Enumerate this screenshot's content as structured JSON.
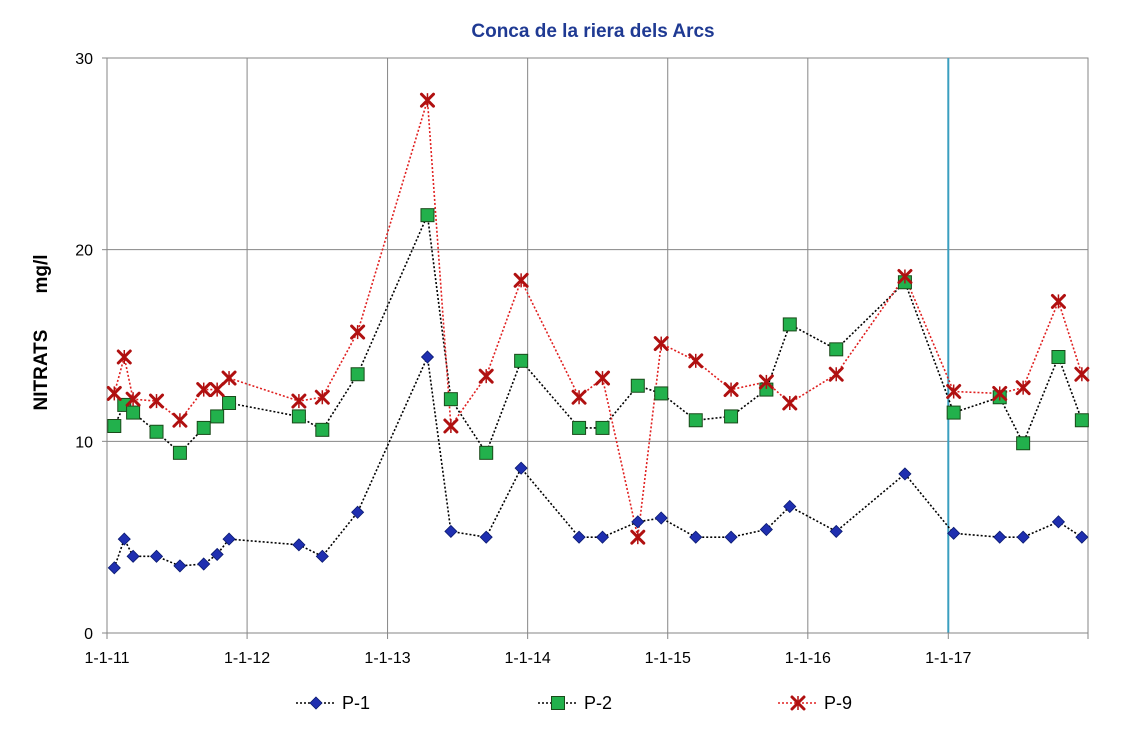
{
  "chart_data": {
    "type": "line",
    "title": "Conca de la riera dels Arcs",
    "ylabel_parts": [
      "NITRATS",
      "mg/l"
    ],
    "xlabel": "",
    "xlim": [
      "2011-01-01",
      "2017-12-31"
    ],
    "ylim": [
      0,
      30
    ],
    "y_ticks": [
      0,
      10,
      20,
      30
    ],
    "x_ticks": [
      {
        "date": "2011-01-01",
        "label": "1-1-11"
      },
      {
        "date": "2012-01-01",
        "label": "1-1-12"
      },
      {
        "date": "2013-01-01",
        "label": "1-1-13"
      },
      {
        "date": "2014-01-01",
        "label": "1-1-14"
      },
      {
        "date": "2015-01-01",
        "label": "1-1-15"
      },
      {
        "date": "2016-01-01",
        "label": "1-1-16"
      },
      {
        "date": "2017-01-01",
        "label": "1-1-17"
      }
    ],
    "grid": true,
    "legend_position": "bottom",
    "reference_line": {
      "date": "2017-01-01",
      "color": "#3a9fc0"
    },
    "series": [
      {
        "name": "P-1",
        "color": "#1f2fb0",
        "line_color": "#000000",
        "marker": "diamond",
        "points": [
          [
            "2011-01-20",
            3.4
          ],
          [
            "2011-02-15",
            4.9
          ],
          [
            "2011-03-10",
            4.0
          ],
          [
            "2011-05-10",
            4.0
          ],
          [
            "2011-07-10",
            3.5
          ],
          [
            "2011-09-10",
            3.6
          ],
          [
            "2011-10-15",
            4.1
          ],
          [
            "2011-11-15",
            4.9
          ],
          [
            "2012-05-15",
            4.6
          ],
          [
            "2012-07-15",
            4.0
          ],
          [
            "2012-10-15",
            6.3
          ],
          [
            "2013-04-15",
            14.4
          ],
          [
            "2013-06-15",
            5.3
          ],
          [
            "2013-09-15",
            5.0
          ],
          [
            "2013-12-15",
            8.6
          ],
          [
            "2014-05-15",
            5.0
          ],
          [
            "2014-07-15",
            5.0
          ],
          [
            "2014-10-15",
            5.8
          ],
          [
            "2014-12-15",
            6.0
          ],
          [
            "2015-03-15",
            5.0
          ],
          [
            "2015-06-15",
            5.0
          ],
          [
            "2015-09-15",
            5.4
          ],
          [
            "2015-11-15",
            6.6
          ],
          [
            "2016-03-15",
            5.3
          ],
          [
            "2016-09-10",
            8.3
          ],
          [
            "2017-01-15",
            5.2
          ],
          [
            "2017-05-15",
            5.0
          ],
          [
            "2017-07-15",
            5.0
          ],
          [
            "2017-10-15",
            5.8
          ],
          [
            "2017-12-15",
            5.0
          ]
        ]
      },
      {
        "name": "P-2",
        "color": "#22b14c",
        "line_color": "#000000",
        "marker": "square",
        "points": [
          [
            "2011-01-20",
            10.8
          ],
          [
            "2011-02-15",
            11.9
          ],
          [
            "2011-03-10",
            11.5
          ],
          [
            "2011-05-10",
            10.5
          ],
          [
            "2011-07-10",
            9.4
          ],
          [
            "2011-09-10",
            10.7
          ],
          [
            "2011-10-15",
            11.3
          ],
          [
            "2011-11-15",
            12.0
          ],
          [
            "2012-05-15",
            11.3
          ],
          [
            "2012-07-15",
            10.6
          ],
          [
            "2012-10-15",
            13.5
          ],
          [
            "2013-04-15",
            21.8
          ],
          [
            "2013-06-15",
            12.2
          ],
          [
            "2013-09-15",
            9.4
          ],
          [
            "2013-12-15",
            14.2
          ],
          [
            "2014-05-15",
            10.7
          ],
          [
            "2014-07-15",
            10.7
          ],
          [
            "2014-10-15",
            12.9
          ],
          [
            "2014-12-15",
            12.5
          ],
          [
            "2015-03-15",
            11.1
          ],
          [
            "2015-06-15",
            11.3
          ],
          [
            "2015-09-15",
            12.7
          ],
          [
            "2015-11-15",
            16.1
          ],
          [
            "2016-03-15",
            14.8
          ],
          [
            "2016-09-10",
            18.3
          ],
          [
            "2017-01-15",
            11.5
          ],
          [
            "2017-05-15",
            12.3
          ],
          [
            "2017-07-15",
            9.9
          ],
          [
            "2017-10-15",
            14.4
          ],
          [
            "2017-12-15",
            11.1
          ]
        ]
      },
      {
        "name": "P-9",
        "color": "#b01010",
        "line_color": "#e02020",
        "marker": "x",
        "points": [
          [
            "2011-01-20",
            12.5
          ],
          [
            "2011-02-15",
            14.4
          ],
          [
            "2011-03-10",
            12.2
          ],
          [
            "2011-05-10",
            12.1
          ],
          [
            "2011-07-10",
            11.1
          ],
          [
            "2011-09-10",
            12.7
          ],
          [
            "2011-10-15",
            12.7
          ],
          [
            "2011-11-15",
            13.3
          ],
          [
            "2012-05-15",
            12.1
          ],
          [
            "2012-07-15",
            12.3
          ],
          [
            "2012-10-15",
            15.7
          ],
          [
            "2013-04-15",
            27.8
          ],
          [
            "2013-06-15",
            10.8
          ],
          [
            "2013-09-15",
            13.4
          ],
          [
            "2013-12-15",
            18.4
          ],
          [
            "2014-05-15",
            12.3
          ],
          [
            "2014-07-15",
            13.3
          ],
          [
            "2014-10-15",
            5.0
          ],
          [
            "2014-12-15",
            15.1
          ],
          [
            "2015-03-15",
            14.2
          ],
          [
            "2015-06-15",
            12.7
          ],
          [
            "2015-09-15",
            13.1
          ],
          [
            "2015-11-15",
            12.0
          ],
          [
            "2016-03-15",
            13.5
          ],
          [
            "2016-09-10",
            18.6
          ],
          [
            "2017-01-15",
            12.6
          ],
          [
            "2017-05-15",
            12.5
          ],
          [
            "2017-07-15",
            12.8
          ],
          [
            "2017-10-15",
            17.3
          ],
          [
            "2017-12-15",
            13.5
          ]
        ]
      }
    ]
  }
}
